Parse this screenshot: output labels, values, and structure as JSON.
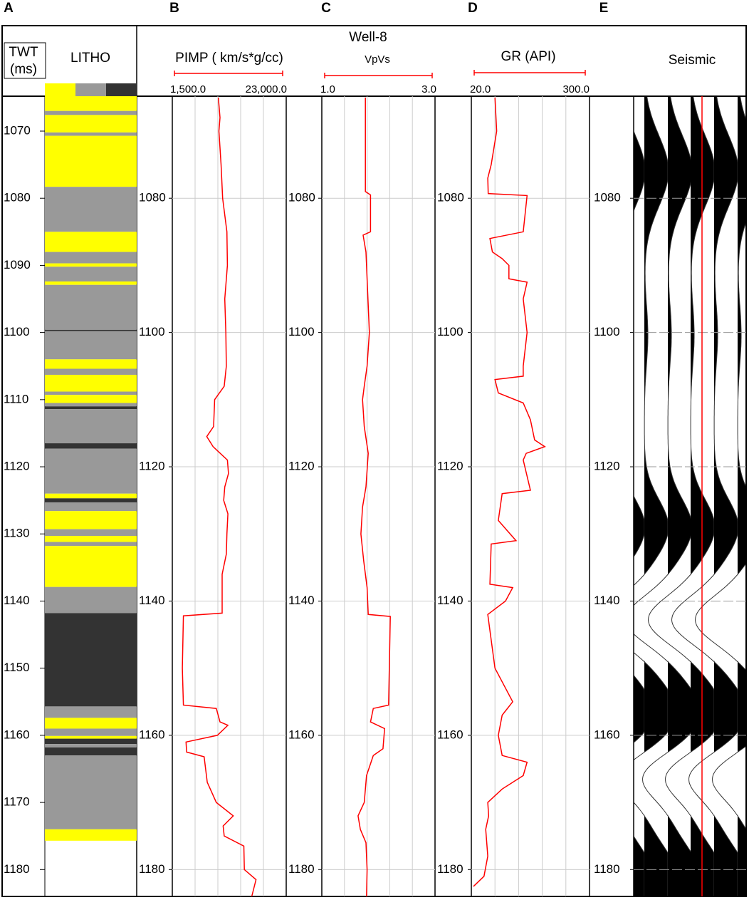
{
  "panel_labels": [
    "A",
    "B",
    "C",
    "D",
    "E"
  ],
  "title": "Well-8",
  "chart_data": [
    {
      "type": "litho",
      "title": "LITHO",
      "ylabel": [
        "TWT",
        "(ms)"
      ],
      "ylim": [
        1064.8,
        1184
      ],
      "yticks": [
        1070,
        1080,
        1090,
        1100,
        1110,
        1120,
        1130,
        1140,
        1150,
        1160,
        1170,
        1180
      ],
      "colors": [
        "#ffff00",
        "#999999",
        "#333333"
      ],
      "intervals": [
        {
          "top": 1064.8,
          "base": 1067.0,
          "lith": 0
        },
        {
          "top": 1067.0,
          "base": 1067.6,
          "lith": 1
        },
        {
          "top": 1067.6,
          "base": 1070.2,
          "lith": 0
        },
        {
          "top": 1070.2,
          "base": 1070.7,
          "lith": 1
        },
        {
          "top": 1070.7,
          "base": 1078.3,
          "lith": 0
        },
        {
          "top": 1078.3,
          "base": 1085.0,
          "lith": 1
        },
        {
          "top": 1085.0,
          "base": 1088.0,
          "lith": 0
        },
        {
          "top": 1088.0,
          "base": 1089.7,
          "lith": 1
        },
        {
          "top": 1089.7,
          "base": 1090.2,
          "lith": 0
        },
        {
          "top": 1090.2,
          "base": 1092.4,
          "lith": 1
        },
        {
          "top": 1092.4,
          "base": 1092.9,
          "lith": 0
        },
        {
          "top": 1092.9,
          "base": 1099.6,
          "lith": 1
        },
        {
          "top": 1099.6,
          "base": 1099.8,
          "lith": 2
        },
        {
          "top": 1099.8,
          "base": 1104.0,
          "lith": 1
        },
        {
          "top": 1104.0,
          "base": 1105.4,
          "lith": 0
        },
        {
          "top": 1105.4,
          "base": 1106.3,
          "lith": 1
        },
        {
          "top": 1106.3,
          "base": 1108.8,
          "lith": 0
        },
        {
          "top": 1108.8,
          "base": 1109.3,
          "lith": 1
        },
        {
          "top": 1109.3,
          "base": 1110.5,
          "lith": 0
        },
        {
          "top": 1110.5,
          "base": 1111.0,
          "lith": 1
        },
        {
          "top": 1111.0,
          "base": 1111.4,
          "lith": 2
        },
        {
          "top": 1111.4,
          "base": 1116.5,
          "lith": 1
        },
        {
          "top": 1116.5,
          "base": 1117.3,
          "lith": 2
        },
        {
          "top": 1117.3,
          "base": 1124.0,
          "lith": 1
        },
        {
          "top": 1124.0,
          "base": 1124.7,
          "lith": 0
        },
        {
          "top": 1124.7,
          "base": 1125.3,
          "lith": 2
        },
        {
          "top": 1125.3,
          "base": 1126.6,
          "lith": 1
        },
        {
          "top": 1126.6,
          "base": 1129.3,
          "lith": 0
        },
        {
          "top": 1129.3,
          "base": 1130.3,
          "lith": 1
        },
        {
          "top": 1130.3,
          "base": 1131.2,
          "lith": 0
        },
        {
          "top": 1131.2,
          "base": 1131.8,
          "lith": 1
        },
        {
          "top": 1131.8,
          "base": 1137.9,
          "lith": 0
        },
        {
          "top": 1137.9,
          "base": 1141.8,
          "lith": 1
        },
        {
          "top": 1141.8,
          "base": 1155.7,
          "lith": 2
        },
        {
          "top": 1155.7,
          "base": 1157.4,
          "lith": 1
        },
        {
          "top": 1157.4,
          "base": 1159.0,
          "lith": 0
        },
        {
          "top": 1159.0,
          "base": 1160.1,
          "lith": 1
        },
        {
          "top": 1160.1,
          "base": 1160.5,
          "lith": 0
        },
        {
          "top": 1160.5,
          "base": 1161.3,
          "lith": 2
        },
        {
          "top": 1161.3,
          "base": 1161.8,
          "lith": 1
        },
        {
          "top": 1161.8,
          "base": 1163.0,
          "lith": 2
        },
        {
          "top": 1163.0,
          "base": 1174.0,
          "lith": 1
        },
        {
          "top": 1174.0,
          "base": 1175.7,
          "lith": 0
        }
      ]
    },
    {
      "type": "line",
      "title": "PIMP ( km/s*g/cc)",
      "color": "#ff0000",
      "xlim": [
        1500,
        23000
      ],
      "xticks": [
        {
          "value": 1500,
          "label": "1,500.0"
        },
        {
          "value": 23000,
          "label": "23,000.0"
        }
      ],
      "ylim": [
        1064.8,
        1184
      ],
      "yticks": [
        1080,
        1100,
        1120,
        1140,
        1160,
        1180
      ],
      "depth": [
        1065,
        1068,
        1070,
        1075,
        1080,
        1085,
        1090,
        1095,
        1100,
        1105,
        1108,
        1110,
        1114,
        1115.5,
        1117,
        1119,
        1121,
        1123,
        1125,
        1127,
        1130,
        1133,
        1136,
        1140,
        1141.8,
        1142.2,
        1150,
        1155.5,
        1156,
        1158,
        1158.5,
        1160,
        1161,
        1162.5,
        1163.2,
        1167,
        1170,
        1172,
        1173.5,
        1175,
        1176.5,
        1180,
        1181.5,
        1184
      ],
      "values": [
        10200,
        10500,
        10300,
        10700,
        11000,
        11800,
        11900,
        11400,
        11600,
        11700,
        11300,
        9500,
        9300,
        8000,
        9200,
        11900,
        12100,
        11400,
        11200,
        12000,
        11800,
        11700,
        10900,
        10900,
        10900,
        3600,
        3400,
        3600,
        9800,
        10500,
        12000,
        10000,
        4100,
        4200,
        7500,
        8100,
        9800,
        13000,
        11100,
        11300,
        15000,
        15100,
        17300,
        16500
      ]
    },
    {
      "type": "line",
      "title": "VpVs",
      "color": "#ff0000",
      "xlim": [
        1.0,
        3.0
      ],
      "xticks": [
        {
          "value": 1.0,
          "label": "1.0"
        },
        {
          "value": 3.0,
          "label": "3.0"
        }
      ],
      "ylim": [
        1064.8,
        1184
      ],
      "yticks": [
        1080,
        1100,
        1120,
        1140,
        1160,
        1180
      ],
      "depth": [
        1065,
        1079,
        1079.5,
        1085,
        1085.5,
        1088,
        1092,
        1100,
        1105,
        1108,
        1110,
        1114,
        1118,
        1123,
        1126,
        1130,
        1134,
        1138,
        1142,
        1142.3,
        1155.5,
        1156,
        1158,
        1159,
        1162,
        1163,
        1166,
        1170,
        1172,
        1174,
        1176,
        1180,
        1184
      ],
      "values": [
        1.77,
        1.77,
        1.86,
        1.86,
        1.73,
        1.78,
        1.8,
        1.84,
        1.8,
        1.75,
        1.72,
        1.75,
        1.82,
        1.78,
        1.72,
        1.69,
        1.74,
        1.8,
        1.82,
        2.21,
        2.18,
        1.91,
        1.86,
        2.11,
        2.08,
        1.91,
        1.79,
        1.75,
        1.64,
        1.68,
        1.78,
        1.8,
        1.79
      ]
    },
    {
      "type": "line",
      "title": "GR (API)",
      "color": "#ff0000",
      "xlim": [
        20,
        300
      ],
      "xticks": [
        {
          "value": 20,
          "label": "20.0"
        },
        {
          "value": 300,
          "label": "300.0"
        }
      ],
      "ylim": [
        1064.8,
        1184
      ],
      "yticks": [
        1080,
        1100,
        1120,
        1140,
        1160,
        1180
      ],
      "depth": [
        1065,
        1070,
        1075,
        1077,
        1079.3,
        1079.6,
        1085,
        1086,
        1088,
        1089,
        1090,
        1092,
        1092.5,
        1095,
        1100,
        1105,
        1106.5,
        1107,
        1109,
        1110.5,
        1113,
        1116,
        1117,
        1118,
        1119,
        1123.5,
        1124,
        1128,
        1131,
        1131.5,
        1137.5,
        1138,
        1140,
        1142,
        1150,
        1155,
        1157,
        1160,
        1163,
        1164,
        1166,
        1168,
        1170,
        1172,
        1174,
        1178,
        1181,
        1182.5
      ],
      "values": [
        76,
        80,
        67,
        59,
        60,
        152,
        143,
        64,
        70,
        93,
        109,
        109,
        152,
        143,
        152,
        143,
        143,
        76,
        84,
        143,
        160,
        170,
        194,
        150,
        143,
        160,
        93,
        84,
        126,
        67,
        64,
        118,
        101,
        59,
        76,
        118,
        93,
        84,
        93,
        152,
        143,
        93,
        59,
        61,
        54,
        59,
        50,
        25
      ]
    },
    {
      "type": "seismic",
      "title": "Seismic",
      "ylim": [
        1064.8,
        1184
      ],
      "yticks": [
        1080,
        1100,
        1120,
        1140,
        1160,
        1180
      ]
    }
  ]
}
